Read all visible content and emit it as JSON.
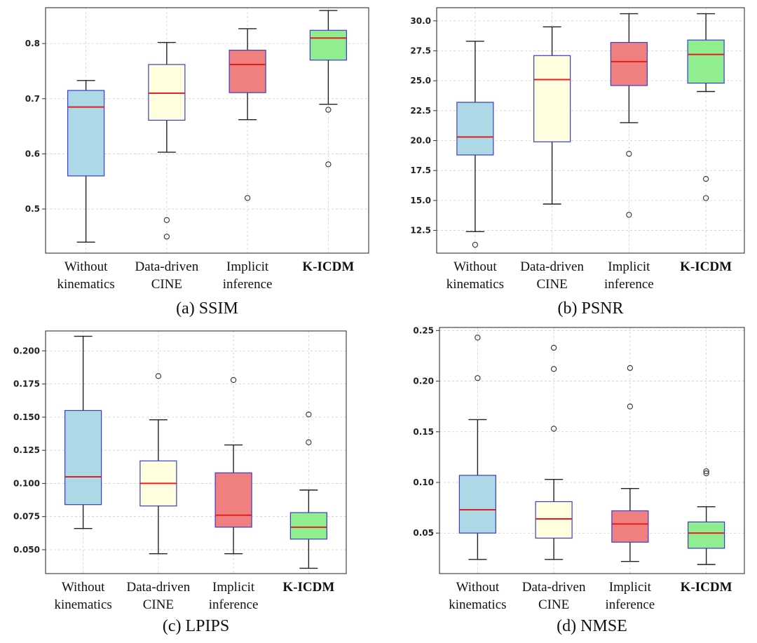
{
  "colors": {
    "without": "#add8e6",
    "data_driven": "#ffffe0",
    "implicit": "#f08080",
    "kicdm": "#90ee90",
    "box_edge": "#3a3ad0",
    "median": "#e02020",
    "whisker": "#222222",
    "grid": "#cccccc"
  },
  "chart_data": [
    {
      "type": "box",
      "panel": "a",
      "title": "(a) SSIM",
      "categories": [
        [
          "Without",
          "kinematics"
        ],
        [
          "Data-driven",
          "CINE"
        ],
        [
          "Implicit",
          "inference"
        ],
        [
          "K-ICDM"
        ]
      ],
      "bold_category": 3,
      "ylim": [
        0.42,
        0.865
      ],
      "yticks": [
        0.5,
        0.6,
        0.7,
        0.8
      ],
      "ytick_labels": [
        "0.5",
        "0.6",
        "0.7",
        "0.8"
      ],
      "boxes": [
        {
          "whislo": 0.44,
          "q1": 0.56,
          "med": 0.685,
          "q3": 0.715,
          "whishi": 0.733,
          "fliers": []
        },
        {
          "whislo": 0.603,
          "q1": 0.661,
          "med": 0.71,
          "q3": 0.762,
          "whishi": 0.802,
          "fliers": [
            0.48,
            0.45
          ]
        },
        {
          "whislo": 0.662,
          "q1": 0.711,
          "med": 0.762,
          "q3": 0.788,
          "whishi": 0.827,
          "fliers": [
            0.52
          ]
        },
        {
          "whislo": 0.69,
          "q1": 0.77,
          "med": 0.81,
          "q3": 0.824,
          "whishi": 0.86,
          "fliers": [
            0.68,
            0.581
          ]
        }
      ]
    },
    {
      "type": "box",
      "panel": "b",
      "title": "(b) PSNR",
      "categories": [
        [
          "Without",
          "kinematics"
        ],
        [
          "Data-driven",
          "CINE"
        ],
        [
          "Implicit",
          "inference"
        ],
        [
          "K-ICDM"
        ]
      ],
      "bold_category": 3,
      "ylim": [
        10.6,
        31.1
      ],
      "yticks": [
        12.5,
        15.0,
        17.5,
        20.0,
        22.5,
        25.0,
        27.5,
        30.0
      ],
      "ytick_labels": [
        "12.5",
        "15.0",
        "17.5",
        "20.0",
        "22.5",
        "25.0",
        "27.5",
        "30.0"
      ],
      "boxes": [
        {
          "whislo": 12.4,
          "q1": 18.8,
          "med": 20.3,
          "q3": 23.2,
          "whishi": 28.3,
          "fliers": [
            11.3
          ]
        },
        {
          "whislo": 14.7,
          "q1": 19.9,
          "med": 25.1,
          "q3": 27.1,
          "whishi": 29.5,
          "fliers": []
        },
        {
          "whislo": 21.5,
          "q1": 24.6,
          "med": 26.6,
          "q3": 28.2,
          "whishi": 30.6,
          "fliers": [
            18.9,
            13.8
          ]
        },
        {
          "whislo": 24.1,
          "q1": 24.8,
          "med": 27.2,
          "q3": 28.4,
          "whishi": 30.6,
          "fliers": [
            16.8,
            15.2
          ]
        }
      ]
    },
    {
      "type": "box",
      "panel": "c",
      "title": "(c) LPIPS",
      "categories": [
        [
          "Without",
          "kinematics"
        ],
        [
          "Data-driven",
          "CINE"
        ],
        [
          "Implicit",
          "inference"
        ],
        [
          "K-ICDM"
        ]
      ],
      "bold_category": 3,
      "ylim": [
        0.032,
        0.215
      ],
      "yticks": [
        0.05,
        0.075,
        0.1,
        0.125,
        0.15,
        0.175,
        0.2
      ],
      "ytick_labels": [
        "0.050",
        "0.075",
        "0.100",
        "0.125",
        "0.150",
        "0.175",
        "0.200"
      ],
      "boxes": [
        {
          "whislo": 0.066,
          "q1": 0.084,
          "med": 0.105,
          "q3": 0.155,
          "whishi": 0.211,
          "fliers": []
        },
        {
          "whislo": 0.047,
          "q1": 0.083,
          "med": 0.1,
          "q3": 0.117,
          "whishi": 0.148,
          "fliers": [
            0.181
          ]
        },
        {
          "whislo": 0.047,
          "q1": 0.067,
          "med": 0.076,
          "q3": 0.108,
          "whishi": 0.129,
          "fliers": [
            0.178
          ]
        },
        {
          "whislo": 0.036,
          "q1": 0.058,
          "med": 0.067,
          "q3": 0.078,
          "whishi": 0.095,
          "fliers": [
            0.152,
            0.131
          ]
        }
      ]
    },
    {
      "type": "box",
      "panel": "d",
      "title": "(d) NMSE",
      "categories": [
        [
          "Without",
          "kinematics"
        ],
        [
          "Data-driven",
          "CINE"
        ],
        [
          "Implicit",
          "inference"
        ],
        [
          "K-ICDM"
        ]
      ],
      "bold_category": 3,
      "ylim": [
        0.01,
        0.253
      ],
      "yticks": [
        0.05,
        0.1,
        0.15,
        0.2,
        0.25
      ],
      "ytick_labels": [
        "0.05",
        "0.10",
        "0.15",
        "0.20",
        "0.25"
      ],
      "boxes": [
        {
          "whislo": 0.024,
          "q1": 0.05,
          "med": 0.073,
          "q3": 0.107,
          "whishi": 0.162,
          "fliers": [
            0.243,
            0.203
          ]
        },
        {
          "whislo": 0.024,
          "q1": 0.045,
          "med": 0.064,
          "q3": 0.081,
          "whishi": 0.103,
          "fliers": [
            0.233,
            0.212,
            0.153
          ]
        },
        {
          "whislo": 0.022,
          "q1": 0.041,
          "med": 0.059,
          "q3": 0.072,
          "whishi": 0.094,
          "fliers": [
            0.213,
            0.175
          ]
        },
        {
          "whislo": 0.019,
          "q1": 0.035,
          "med": 0.05,
          "q3": 0.061,
          "whishi": 0.076,
          "fliers": [
            0.111,
            0.109
          ]
        }
      ]
    }
  ]
}
